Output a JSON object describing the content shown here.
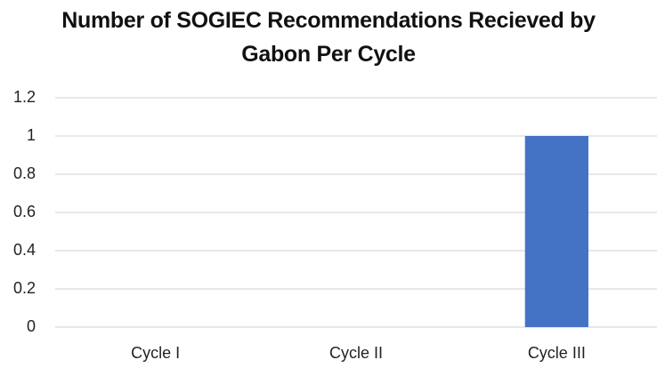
{
  "chart_data": {
    "type": "bar",
    "title": "Number of SOGIEC Recommendations Recieved by Gabon Per Cycle",
    "categories": [
      "Cycle I",
      "Cycle II",
      "Cycle III"
    ],
    "values": [
      0,
      0,
      1
    ],
    "color": "#4472c4",
    "ylim": [
      0,
      1.2
    ],
    "yticks": [
      0,
      0.2,
      0.4,
      0.6,
      0.8,
      1,
      1.2
    ],
    "grid": true
  }
}
